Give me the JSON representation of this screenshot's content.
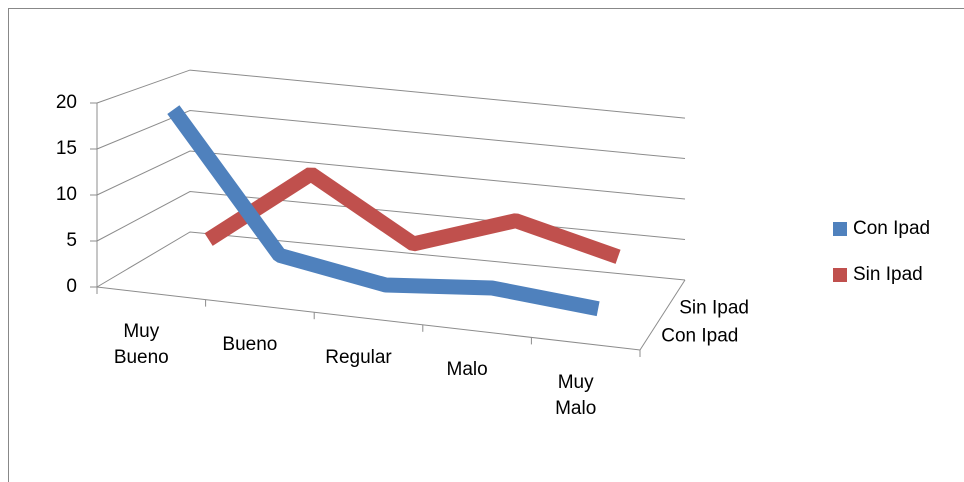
{
  "chart_data": {
    "type": "line3d",
    "categories": [
      "Muy Bueno",
      "Bueno",
      "Regular",
      "Malo",
      "Muy Malo"
    ],
    "series": [
      {
        "name": "Con Ipad",
        "color": "#4f81bd",
        "values": [
          19,
          4,
          2,
          3,
          2
        ]
      },
      {
        "name": "Sin Ipad",
        "color": "#c0504d",
        "values": [
          2,
          11,
          4,
          8,
          5
        ]
      }
    ],
    "ylim": [
      0,
      20
    ],
    "yticks": [
      0,
      5,
      10,
      15,
      20
    ],
    "grid": true,
    "legend": "right"
  }
}
